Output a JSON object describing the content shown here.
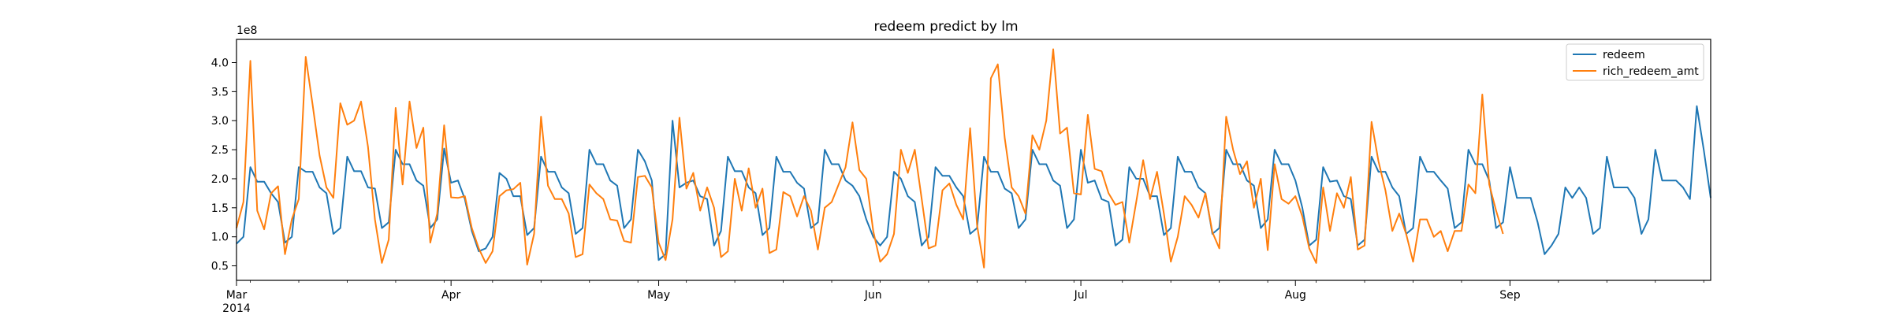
{
  "chart_data": {
    "type": "line",
    "title": "redeem predict by lm",
    "xlabel": "",
    "ylabel": "",
    "y_offset_label": "1e8",
    "x_range": [
      "2014-03-01",
      "2014-09-30"
    ],
    "ylim": [
      25000000,
      440000000
    ],
    "y_ticks": [
      {
        "value": 50000000,
        "label": "0.5"
      },
      {
        "value": 100000000,
        "label": "1.0"
      },
      {
        "value": 150000000,
        "label": "1.5"
      },
      {
        "value": 200000000,
        "label": "2.0"
      },
      {
        "value": 250000000,
        "label": "2.5"
      },
      {
        "value": 300000000,
        "label": "3.0"
      },
      {
        "value": 350000000,
        "label": "3.5"
      },
      {
        "value": 400000000,
        "label": "4.0"
      }
    ],
    "x_ticks": [
      {
        "date": "2014-03-01",
        "label": "Mar",
        "sublabel": "2014"
      },
      {
        "date": "2014-04-01",
        "label": "Apr"
      },
      {
        "date": "2014-05-01",
        "label": "May"
      },
      {
        "date": "2014-06-01",
        "label": "Jun"
      },
      {
        "date": "2014-07-01",
        "label": "Jul"
      },
      {
        "date": "2014-08-01",
        "label": "Aug"
      },
      {
        "date": "2014-09-01",
        "label": "Sep"
      }
    ],
    "grid": false,
    "legend_position": "top-right",
    "series": [
      {
        "name": "redeem",
        "color": "#1f77b4",
        "start_date": "2014-03-01",
        "values": [
          88000000,
          100000000,
          220000000,
          195000000,
          195000000,
          175000000,
          160000000,
          90000000,
          100000000,
          220000000,
          212000000,
          212000000,
          185000000,
          175000000,
          105000000,
          115000000,
          238000000,
          213000000,
          213000000,
          185000000,
          183000000,
          115000000,
          125000000,
          250000000,
          225000000,
          225000000,
          197000000,
          188000000,
          115000000,
          130000000,
          252000000,
          193000000,
          197000000,
          165000000,
          110000000,
          75000000,
          80000000,
          100000000,
          210000000,
          200000000,
          170000000,
          170000000,
          103000000,
          115000000,
          238000000,
          212000000,
          212000000,
          185000000,
          175000000,
          105000000,
          115000000,
          250000000,
          225000000,
          225000000,
          197000000,
          188000000,
          115000000,
          130000000,
          250000000,
          230000000,
          197000000,
          60000000,
          70000000,
          300000000,
          185000000,
          193000000,
          197000000,
          170000000,
          165000000,
          85000000,
          110000000,
          238000000,
          213000000,
          213000000,
          185000000,
          175000000,
          103000000,
          115000000,
          238000000,
          212000000,
          212000000,
          193000000,
          183000000,
          115000000,
          125000000,
          250000000,
          225000000,
          225000000,
          197000000,
          188000000,
          170000000,
          130000000,
          100000000,
          85000000,
          100000000,
          212000000,
          200000000,
          170000000,
          160000000,
          85000000,
          100000000,
          220000000,
          205000000,
          205000000,
          185000000,
          170000000,
          105000000,
          115000000,
          238000000,
          212000000,
          212000000,
          183000000,
          175000000,
          115000000,
          130000000,
          250000000,
          225000000,
          225000000,
          197000000,
          188000000,
          115000000,
          130000000,
          250000000,
          193000000,
          197000000,
          165000000,
          160000000,
          85000000,
          95000000,
          220000000,
          200000000,
          200000000,
          170000000,
          170000000,
          103000000,
          115000000,
          238000000,
          212000000,
          212000000,
          185000000,
          175000000,
          105000000,
          115000000,
          250000000,
          225000000,
          225000000,
          197000000,
          188000000,
          115000000,
          130000000,
          250000000,
          225000000,
          225000000,
          197000000,
          150000000,
          85000000,
          95000000,
          220000000,
          195000000,
          197000000,
          170000000,
          165000000,
          85000000,
          95000000,
          238000000,
          212000000,
          212000000,
          185000000,
          170000000,
          105000000,
          115000000,
          238000000,
          212000000,
          212000000,
          197000000,
          183000000,
          115000000,
          125000000,
          250000000,
          225000000,
          225000000,
          197000000,
          115000000,
          125000000,
          220000000,
          167000000,
          167000000,
          167000000,
          125000000,
          70000000,
          85000000,
          105000000,
          185000000,
          167000000,
          185000000,
          167000000,
          105000000,
          115000000,
          238000000,
          185000000,
          185000000,
          185000000,
          167000000,
          105000000,
          130000000,
          250000000,
          197000000,
          197000000,
          197000000,
          185000000,
          165000000,
          325000000,
          250000000,
          167000000
        ]
      },
      {
        "name": "rich_redeem_amt",
        "color": "#ff7f0e",
        "start_date": "2014-03-01",
        "values": [
          115000000,
          160000000,
          403000000,
          145000000,
          113000000,
          175000000,
          187000000,
          70000000,
          130000000,
          165000000,
          410000000,
          327000000,
          240000000,
          185000000,
          167000000,
          330000000,
          293000000,
          300000000,
          333000000,
          255000000,
          130000000,
          55000000,
          95000000,
          322000000,
          190000000,
          333000000,
          253000000,
          288000000,
          90000000,
          140000000,
          292000000,
          168000000,
          167000000,
          170000000,
          115000000,
          80000000,
          55000000,
          75000000,
          170000000,
          180000000,
          182000000,
          193000000,
          52000000,
          105000000,
          307000000,
          188000000,
          165000000,
          165000000,
          140000000,
          65000000,
          70000000,
          190000000,
          175000000,
          165000000,
          130000000,
          128000000,
          93000000,
          90000000,
          203000000,
          205000000,
          185000000,
          90000000,
          60000000,
          130000000,
          305000000,
          183000000,
          210000000,
          145000000,
          185000000,
          150000000,
          65000000,
          75000000,
          200000000,
          145000000,
          218000000,
          150000000,
          183000000,
          72000000,
          78000000,
          177000000,
          170000000,
          135000000,
          170000000,
          145000000,
          78000000,
          150000000,
          160000000,
          190000000,
          220000000,
          297000000,
          215000000,
          200000000,
          110000000,
          57000000,
          70000000,
          105000000,
          250000000,
          210000000,
          250000000,
          165000000,
          80000000,
          85000000,
          180000000,
          192000000,
          155000000,
          130000000,
          287000000,
          120000000,
          47000000,
          373000000,
          397000000,
          270000000,
          185000000,
          170000000,
          140000000,
          275000000,
          250000000,
          300000000,
          423000000,
          278000000,
          288000000,
          175000000,
          173000000,
          310000000,
          217000000,
          213000000,
          175000000,
          155000000,
          160000000,
          90000000,
          160000000,
          232000000,
          165000000,
          212000000,
          140000000,
          57000000,
          100000000,
          170000000,
          155000000,
          133000000,
          175000000,
          108000000,
          80000000,
          307000000,
          250000000,
          208000000,
          230000000,
          150000000,
          200000000,
          77000000,
          225000000,
          165000000,
          157000000,
          170000000,
          135000000,
          80000000,
          55000000,
          185000000,
          110000000,
          175000000,
          150000000,
          203000000,
          78000000,
          85000000,
          298000000,
          230000000,
          180000000,
          110000000,
          140000000,
          105000000,
          57000000,
          130000000,
          130000000,
          100000000,
          110000000,
          75000000,
          110000000,
          110000000,
          190000000,
          175000000,
          345000000,
          190000000,
          145000000,
          105000000
        ]
      }
    ]
  }
}
